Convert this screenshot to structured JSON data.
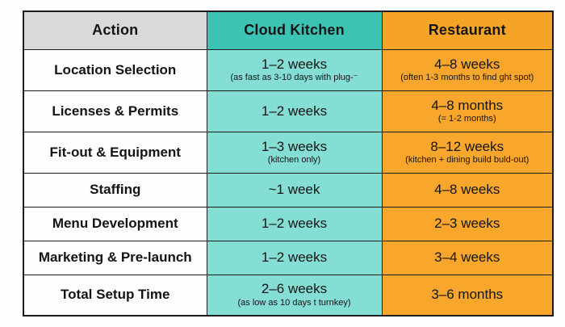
{
  "table": {
    "headers": [
      "Action",
      "Cloud Kitchen",
      "Restaurant"
    ],
    "rows": [
      {
        "action": "Location Selection",
        "ck": {
          "main": "1–2 weeks",
          "sub": "(as fast as 3-10 days with plug-⁻"
        },
        "rest": {
          "main": "4–8 weeks",
          "sub": "(often 1-3 months to find ght spot)"
        }
      },
      {
        "action": "Licenses & Permits",
        "ck": {
          "main": "1–2 weeks",
          "sub": ""
        },
        "rest": {
          "main": "4–8 months",
          "sub": "(= 1-2 months)"
        }
      },
      {
        "action": "Fit-out & Equipment",
        "ck": {
          "main": "1–3 weeks",
          "sub": "(kitchen only)"
        },
        "rest": {
          "main": "8–12 weeks",
          "sub": "(kitchen + dining build buld-out)"
        }
      },
      {
        "action": "Staffing",
        "ck": {
          "main": "~1 week",
          "sub": ""
        },
        "rest": {
          "main": "4–8 weeks",
          "sub": ""
        }
      },
      {
        "action": "Menu Development",
        "ck": {
          "main": "1–2 weeks",
          "sub": ""
        },
        "rest": {
          "main": "2–3 weeks",
          "sub": ""
        }
      },
      {
        "action": "Marketing & Pre-launch",
        "ck": {
          "main": "1–2 weeks",
          "sub": ""
        },
        "rest": {
          "main": "3–4 weeks",
          "sub": ""
        }
      },
      {
        "action": "Total Setup Time",
        "ck": {
          "main": "2–6 weeks",
          "sub": "(as low as 10 days t turnkey)"
        },
        "rest": {
          "main": "3–6 months",
          "sub": ""
        }
      }
    ]
  },
  "colors": {
    "header_gray": "#d9d9d9",
    "header_teal": "#3cc3b3",
    "body_teal": "#85ded4",
    "orange": "#f6a425",
    "border": "#1c1c1c",
    "text": "#141414"
  },
  "chart_data": {
    "type": "table",
    "title": "Cloud Kitchen vs Restaurant setup timeline comparison",
    "columns": [
      "Action",
      "Cloud Kitchen",
      "Restaurant"
    ],
    "rows": [
      [
        "Location Selection",
        "1–2 weeks (as fast as 3-10 days with plug-⁻",
        "4–8 weeks (often 1-3 months to find ght spot)"
      ],
      [
        "Licenses & Permits",
        "1–2 weeks",
        "4–8 months (= 1-2 months)"
      ],
      [
        "Fit-out & Equipment",
        "1–3 weeks (kitchen only)",
        "8–12 weeks (kitchen + dining build buld-out)"
      ],
      [
        "Staffing",
        "~1 week",
        "4–8 weeks"
      ],
      [
        "Menu Development",
        "1–2 weeks",
        "2–3 weeks"
      ],
      [
        "Marketing & Pre-launch",
        "1–2 weeks",
        "3–4 weeks"
      ],
      [
        "Total Setup Time",
        "2–6 weeks (as low as 10 days t turnkey)",
        "3–6 months"
      ]
    ]
  }
}
